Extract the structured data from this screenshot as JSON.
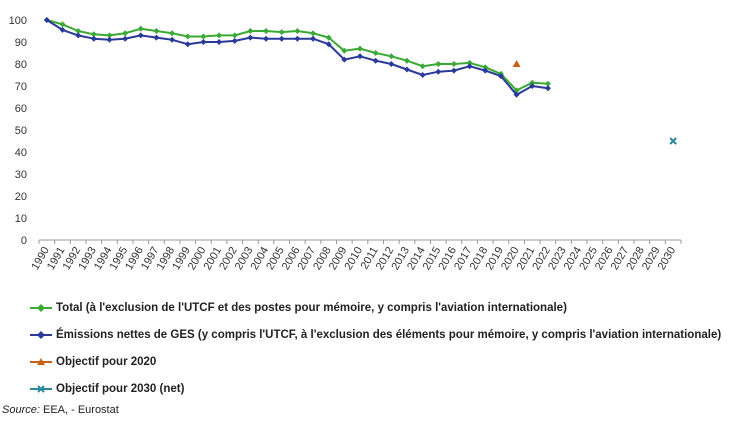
{
  "chart_data": {
    "type": "line",
    "x": [
      "1990",
      "1991",
      "1992",
      "1993",
      "1994",
      "1995",
      "1996",
      "1997",
      "1998",
      "1999",
      "2000",
      "2001",
      "2002",
      "2003",
      "2004",
      "2005",
      "2006",
      "2007",
      "2008",
      "2009",
      "2010",
      "2011",
      "2012",
      "2013",
      "2014",
      "2015",
      "2016",
      "2017",
      "2018",
      "2019",
      "2020",
      "2021",
      "2022",
      "2023",
      "2024",
      "2025",
      "2026",
      "2027",
      "2028",
      "2029",
      "2030"
    ],
    "ylim": [
      0,
      100
    ],
    "yticks": [
      0,
      10,
      20,
      30,
      40,
      50,
      60,
      70,
      80,
      90,
      100
    ],
    "grid": "none",
    "legend_position": "bottom",
    "series": [
      {
        "name": "Total (à l'exclusion de l'UTCF et des postes pour mémoire, y compris l'aviation internationale)",
        "color": "#3aa935",
        "marker": "diamond",
        "x": [
          "1990",
          "1991",
          "1992",
          "1993",
          "1994",
          "1995",
          "1996",
          "1997",
          "1998",
          "1999",
          "2000",
          "2001",
          "2002",
          "2003",
          "2004",
          "2005",
          "2006",
          "2007",
          "2008",
          "2009",
          "2010",
          "2011",
          "2012",
          "2013",
          "2014",
          "2015",
          "2016",
          "2017",
          "2018",
          "2019",
          "2020",
          "2021",
          "2022"
        ],
        "values": [
          100,
          98,
          95,
          93.5,
          93,
          94,
          96,
          95,
          94,
          92.5,
          92.5,
          93,
          93,
          95,
          95,
          94.5,
          95,
          94,
          92,
          86,
          87,
          85,
          83.5,
          81.5,
          79,
          80,
          80,
          80.5,
          78.5,
          75.5,
          68,
          71.5,
          71
        ]
      },
      {
        "name": "Émissions nettes de GES (y compris l'UTCF, à l'exclusion des éléments pour mémoire, y compris l'aviation internationale)",
        "color": "#2a3a9b",
        "marker": "diamond",
        "x": [
          "1990",
          "1991",
          "1992",
          "1993",
          "1994",
          "1995",
          "1996",
          "1997",
          "1998",
          "1999",
          "2000",
          "2001",
          "2002",
          "2003",
          "2004",
          "2005",
          "2006",
          "2007",
          "2008",
          "2009",
          "2010",
          "2011",
          "2012",
          "2013",
          "2014",
          "2015",
          "2016",
          "2017",
          "2018",
          "2019",
          "2020",
          "2021",
          "2022"
        ],
        "values": [
          100,
          95.5,
          93,
          91.5,
          91,
          91.5,
          93,
          92,
          91,
          89,
          90,
          90,
          90.5,
          92,
          91.5,
          91.5,
          91.5,
          91.5,
          89,
          82,
          83.5,
          81.5,
          80,
          77.5,
          75,
          76.5,
          77,
          79,
          77,
          74.5,
          66,
          70,
          69
        ]
      },
      {
        "name": "Objectif pour 2020",
        "color": "#c8621b",
        "marker": "triangle",
        "x": [
          "2020"
        ],
        "values": [
          80
        ]
      },
      {
        "name": "Objectif pour 2030 (net)",
        "color": "#2a8a9b",
        "marker": "x",
        "x": [
          "2030"
        ],
        "values": [
          45
        ]
      }
    ]
  },
  "source": {
    "label": "Source:",
    "text": "EEA, - Eurostat"
  }
}
